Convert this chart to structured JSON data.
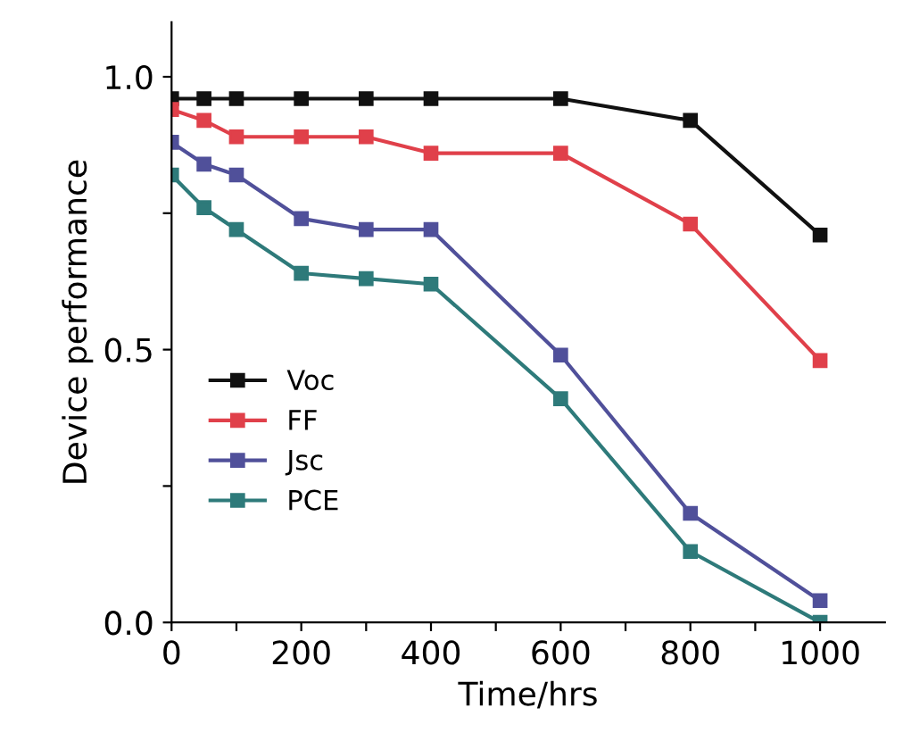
{
  "chart_data": {
    "type": "line",
    "xlabel": "Time/hrs",
    "ylabel": "Device performance",
    "x": [
      0,
      50,
      100,
      200,
      300,
      400,
      600,
      800,
      1000
    ],
    "series": [
      {
        "name": "Voc",
        "color": "#111111",
        "values": [
          0.96,
          0.96,
          0.96,
          0.96,
          0.96,
          0.96,
          0.96,
          0.92,
          0.71
        ]
      },
      {
        "name": "FF",
        "color": "#e0404a",
        "values": [
          0.94,
          0.92,
          0.89,
          0.89,
          0.89,
          0.86,
          0.86,
          0.73,
          0.48
        ]
      },
      {
        "name": "Jsc",
        "color": "#50509a",
        "values": [
          0.88,
          0.84,
          0.82,
          0.74,
          0.72,
          0.72,
          0.49,
          0.2,
          0.04
        ]
      },
      {
        "name": "PCE",
        "color": "#2e7a7a",
        "values": [
          0.82,
          0.76,
          0.72,
          0.64,
          0.63,
          0.62,
          0.41,
          0.13,
          0.0
        ]
      }
    ],
    "xlim": [
      0,
      1100
    ],
    "ylim": [
      0,
      1.1
    ],
    "xticks": [
      0,
      {
        "value": 100,
        "label": null
      },
      200,
      {
        "value": 300,
        "label": null
      },
      400,
      {
        "value": 500,
        "label": null
      },
      600,
      {
        "value": 700,
        "label": null
      },
      800,
      {
        "value": 900,
        "label": null
      },
      1000
    ],
    "yticks": [
      {
        "value": 0,
        "label": "0.0"
      },
      {
        "value": 0.25,
        "label": null
      },
      0.5,
      {
        "value": 0.75,
        "label": null
      },
      {
        "value": 1.0,
        "label": "1.0"
      }
    ],
    "grid": false,
    "legend": "left",
    "marker": "square",
    "line_style": "solid"
  }
}
